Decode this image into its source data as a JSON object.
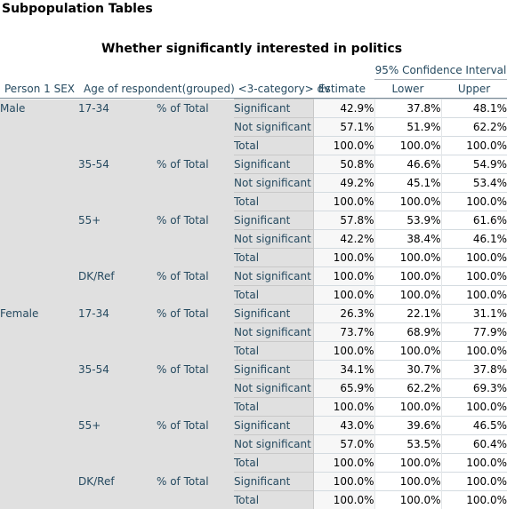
{
  "heading": "Subpopulation Tables",
  "table_title": "Whether significantly interested in politics",
  "ci_header": "95% Confidence Interval",
  "columns": {
    "sex": "Person 1 SEX",
    "age": "Age of respondent(grouped) <3-category> dv",
    "estimate": "Estimate",
    "lower": "Lower",
    "upper": "Upper"
  },
  "stat_label": "% of Total",
  "groups": [
    {
      "sex": "Male",
      "age": "17-34",
      "rows": [
        {
          "cat": "Significant",
          "est": "42.9%",
          "lo": "37.8%",
          "hi": "48.1%"
        },
        {
          "cat": "Not significant",
          "est": "57.1%",
          "lo": "51.9%",
          "hi": "62.2%"
        },
        {
          "cat": "Total",
          "est": "100.0%",
          "lo": "100.0%",
          "hi": "100.0%"
        }
      ]
    },
    {
      "sex": "",
      "age": "35-54",
      "rows": [
        {
          "cat": "Significant",
          "est": "50.8%",
          "lo": "46.6%",
          "hi": "54.9%"
        },
        {
          "cat": "Not significant",
          "est": "49.2%",
          "lo": "45.1%",
          "hi": "53.4%"
        },
        {
          "cat": "Total",
          "est": "100.0%",
          "lo": "100.0%",
          "hi": "100.0%"
        }
      ]
    },
    {
      "sex": "",
      "age": "55+",
      "rows": [
        {
          "cat": "Significant",
          "est": "57.8%",
          "lo": "53.9%",
          "hi": "61.6%"
        },
        {
          "cat": "Not significant",
          "est": "42.2%",
          "lo": "38.4%",
          "hi": "46.1%"
        },
        {
          "cat": "Total",
          "est": "100.0%",
          "lo": "100.0%",
          "hi": "100.0%"
        }
      ]
    },
    {
      "sex": "",
      "age": "DK/Ref",
      "rows": [
        {
          "cat": "Not significant",
          "est": "100.0%",
          "lo": "100.0%",
          "hi": "100.0%"
        },
        {
          "cat": "Total",
          "est": "100.0%",
          "lo": "100.0%",
          "hi": "100.0%"
        }
      ]
    },
    {
      "sex": "Female",
      "age": "17-34",
      "rows": [
        {
          "cat": "Significant",
          "est": "26.3%",
          "lo": "22.1%",
          "hi": "31.1%"
        },
        {
          "cat": "Not significant",
          "est": "73.7%",
          "lo": "68.9%",
          "hi": "77.9%"
        },
        {
          "cat": "Total",
          "est": "100.0%",
          "lo": "100.0%",
          "hi": "100.0%"
        }
      ]
    },
    {
      "sex": "",
      "age": "35-54",
      "rows": [
        {
          "cat": "Significant",
          "est": "34.1%",
          "lo": "30.7%",
          "hi": "37.8%"
        },
        {
          "cat": "Not significant",
          "est": "65.9%",
          "lo": "62.2%",
          "hi": "69.3%"
        },
        {
          "cat": "Total",
          "est": "100.0%",
          "lo": "100.0%",
          "hi": "100.0%"
        }
      ]
    },
    {
      "sex": "",
      "age": "55+",
      "rows": [
        {
          "cat": "Significant",
          "est": "43.0%",
          "lo": "39.6%",
          "hi": "46.5%"
        },
        {
          "cat": "Not significant",
          "est": "57.0%",
          "lo": "53.5%",
          "hi": "60.4%"
        },
        {
          "cat": "Total",
          "est": "100.0%",
          "lo": "100.0%",
          "hi": "100.0%"
        }
      ]
    },
    {
      "sex": "",
      "age": "DK/Ref",
      "rows": [
        {
          "cat": "Significant",
          "est": "100.0%",
          "lo": "100.0%",
          "hi": "100.0%"
        },
        {
          "cat": "Total",
          "est": "100.0%",
          "lo": "100.0%",
          "hi": "100.0%"
        }
      ]
    }
  ]
}
